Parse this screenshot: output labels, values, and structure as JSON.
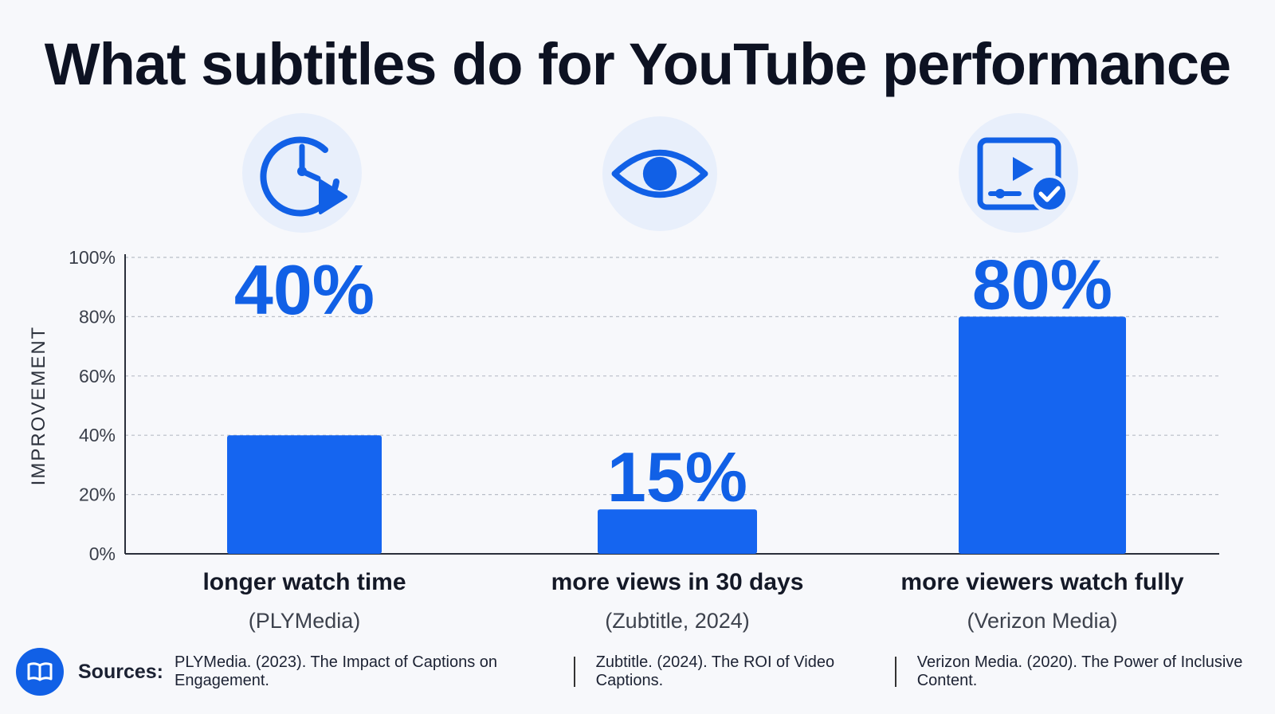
{
  "title": "What subtitles do for YouTube performance",
  "colors": {
    "accent": "#1160e6",
    "bar": "#1565f0",
    "title": "#0d1222",
    "icon_bg": "#e8effb"
  },
  "icons": [
    "clock-play-icon",
    "eye-icon",
    "video-check-icon"
  ],
  "chart_data": {
    "type": "bar",
    "categories": [
      "longer watch time",
      "more views in 30 days",
      "more viewers watch fully"
    ],
    "category_sources": [
      "(PLYMedia)",
      "(Zubtitle, 2024)",
      "(Verizon Media)"
    ],
    "values": [
      40,
      15,
      80
    ],
    "data_labels": [
      "40%",
      "15%",
      "80%"
    ],
    "ylabel": "IMPROVEMENT",
    "ylim": [
      0,
      100
    ],
    "yticks": [
      0,
      20,
      40,
      60,
      80,
      100
    ],
    "ytick_labels": [
      "0%",
      "20%",
      "40%",
      "60%",
      "80%",
      "100%"
    ],
    "grid": true
  },
  "sources": {
    "label": "Sources:",
    "items": [
      "PLYMedia. (2023). The Impact of Captions on Engagement.",
      "Zubtitle. (2024). The ROI of Video Captions.",
      "Verizon Media. (2020). The Power of Inclusive Content."
    ]
  }
}
